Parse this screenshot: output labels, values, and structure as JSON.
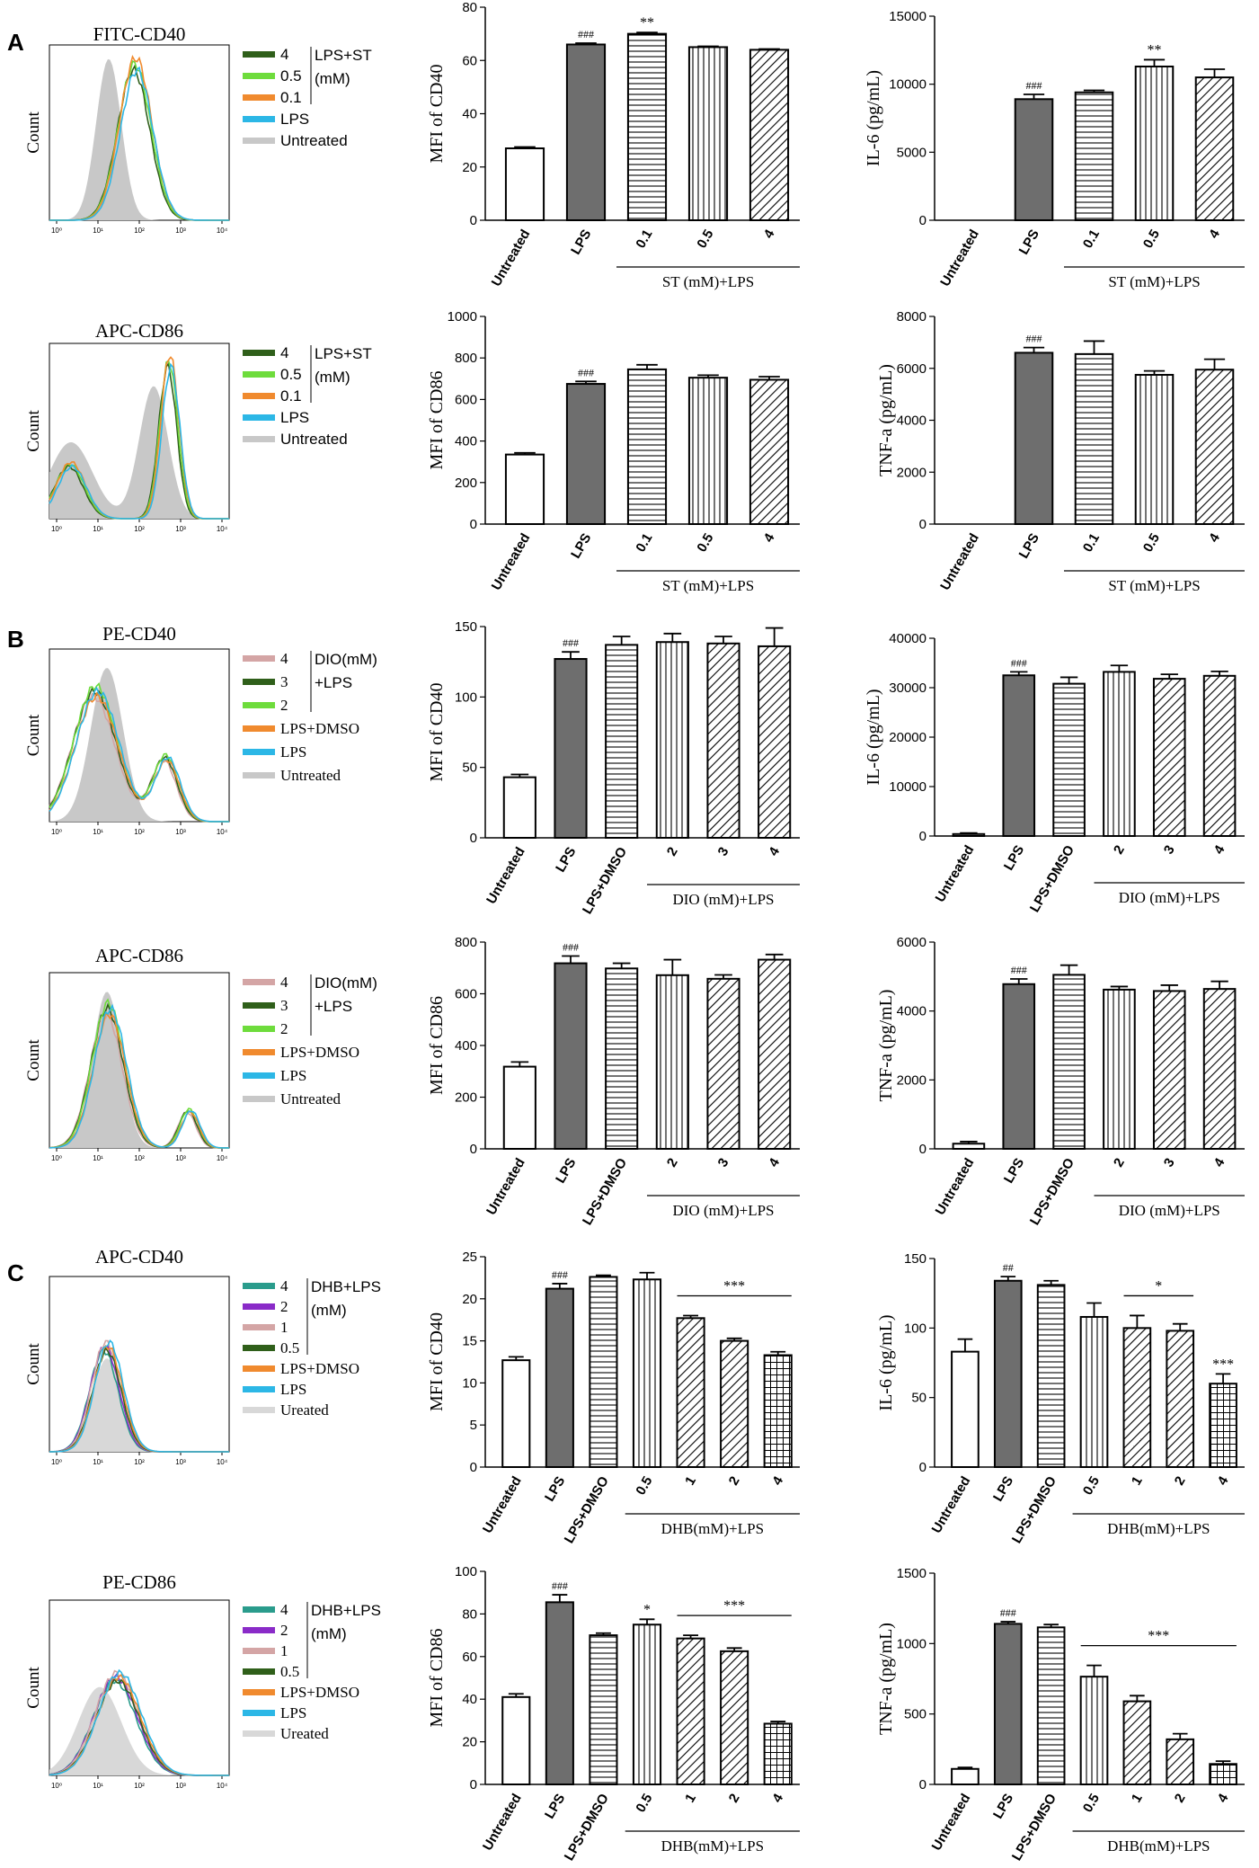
{
  "panels": [
    {
      "letter": "A"
    },
    {
      "letter": "B"
    },
    {
      "letter": "C"
    }
  ],
  "colors": {
    "untreated_fill": "#c8c8c8",
    "lps_bar": "#6e6e6e",
    "dark_green": "#2f5f1a",
    "light_green": "#6edc3c",
    "orange": "#f08a2e",
    "cyan": "#2cb7e6",
    "pink": "#d4a5a5",
    "teal": "#2a9c8c",
    "purple": "#8a2bc8",
    "light_gray": "#d8d8d8"
  },
  "histograms": [
    {
      "title": "FITC-CD40",
      "ylabel": "Count",
      "xticks": [
        "10⁰",
        "10¹",
        "10²",
        "10³",
        "10⁴"
      ],
      "legend": [
        {
          "label": "4",
          "color": "#2f5f1a"
        },
        {
          "label": "0.5",
          "color": "#6edc3c"
        },
        {
          "label": "0.1",
          "color": "#f08a2e"
        },
        {
          "label": "LPS",
          "color": "#2cb7e6"
        },
        {
          "label": "Untreated",
          "color": "#c8c8c8"
        }
      ],
      "group_label": [
        "LPS+ST",
        "(mM)"
      ],
      "group_count": 3
    },
    {
      "title": "APC-CD86",
      "ylabel": "Count",
      "xticks": [
        "10⁰",
        "10¹",
        "10²",
        "10³",
        "10⁴"
      ],
      "legend": [
        {
          "label": "4",
          "color": "#2f5f1a"
        },
        {
          "label": "0.5",
          "color": "#6edc3c"
        },
        {
          "label": "0.1",
          "color": "#f08a2e"
        },
        {
          "label": "LPS",
          "color": "#2cb7e6"
        },
        {
          "label": "Untreated",
          "color": "#c8c8c8"
        }
      ],
      "group_label": [
        "LPS+ST",
        "(mM)"
      ],
      "group_count": 3
    },
    {
      "title": "PE-CD40",
      "ylabel": "Count",
      "xticks": [
        "10⁰",
        "10¹",
        "10²",
        "10³",
        "10⁴"
      ],
      "legend": [
        {
          "label": "4",
          "color": "#d4a5a5"
        },
        {
          "label": "3",
          "color": "#2f5f1a"
        },
        {
          "label": "2",
          "color": "#6edc3c"
        },
        {
          "label": "LPS+DMSO",
          "color": "#f08a2e"
        },
        {
          "label": "LPS",
          "color": "#2cb7e6"
        },
        {
          "label": "Untreated",
          "color": "#c8c8c8"
        }
      ],
      "group_label": [
        "DIO(mM)",
        "+LPS"
      ],
      "group_count": 3
    },
    {
      "title": "APC-CD86",
      "ylabel": "Count",
      "xticks": [
        "10⁰",
        "10¹",
        "10²",
        "10³",
        "10⁴"
      ],
      "legend": [
        {
          "label": "4",
          "color": "#d4a5a5"
        },
        {
          "label": "3",
          "color": "#2f5f1a"
        },
        {
          "label": "2",
          "color": "#6edc3c"
        },
        {
          "label": "LPS+DMSO",
          "color": "#f08a2e"
        },
        {
          "label": "LPS",
          "color": "#2cb7e6"
        },
        {
          "label": "Untreated",
          "color": "#c8c8c8"
        }
      ],
      "group_label": [
        "DIO(mM)",
        "+LPS"
      ],
      "group_count": 3
    },
    {
      "title": "APC-CD40",
      "ylabel": "Count",
      "xticks": [
        "10⁰",
        "10¹",
        "10²",
        "10³",
        "10⁴"
      ],
      "legend": [
        {
          "label": "4",
          "color": "#2a9c8c"
        },
        {
          "label": "2",
          "color": "#8a2bc8"
        },
        {
          "label": "1",
          "color": "#d4a5a5"
        },
        {
          "label": "0.5",
          "color": "#2f5f1a"
        },
        {
          "label": "LPS+DMSO",
          "color": "#f08a2e"
        },
        {
          "label": "LPS",
          "color": "#2cb7e6"
        },
        {
          "label": "Ureated",
          "color": "#d8d8d8"
        }
      ],
      "group_label": [
        "DHB+LPS",
        "(mM)"
      ],
      "group_count": 4
    },
    {
      "title": "PE-CD86",
      "ylabel": "Count",
      "xticks": [
        "10⁰",
        "10¹",
        "10²",
        "10³",
        "10⁴"
      ],
      "legend": [
        {
          "label": "4",
          "color": "#2a9c8c"
        },
        {
          "label": "2",
          "color": "#8a2bc8"
        },
        {
          "label": "1",
          "color": "#d4a5a5"
        },
        {
          "label": "0.5",
          "color": "#2f5f1a"
        },
        {
          "label": "LPS+DMSO",
          "color": "#f08a2e"
        },
        {
          "label": "LPS",
          "color": "#2cb7e6"
        },
        {
          "label": "Ureated",
          "color": "#d8d8d8"
        }
      ],
      "group_label": [
        "DHB+LPS",
        "(mM)"
      ],
      "group_count": 4
    }
  ],
  "chart_data": [
    {
      "type": "bar",
      "ylabel": "MFI of CD40",
      "ylim": [
        0,
        80
      ],
      "yticks": [
        0,
        20,
        40,
        60,
        80
      ],
      "categories": [
        "Untreated",
        "LPS",
        "0.1",
        "0.5",
        "4"
      ],
      "values": [
        27,
        66,
        70,
        65,
        64
      ],
      "errors": [
        0.5,
        0.5,
        0.5,
        0.3,
        0.3
      ],
      "patterns": [
        "none",
        "solid",
        "hlines",
        "vlines",
        "diag"
      ],
      "annotations": [
        "",
        "###",
        "**",
        "",
        ""
      ],
      "group_label": "ST (mM)+LPS",
      "group_range": [
        2,
        4
      ]
    },
    {
      "type": "bar",
      "ylabel": "IL-6 (pg/mL)",
      "ylim": [
        0,
        15000
      ],
      "yticks": [
        0,
        5000,
        10000,
        15000
      ],
      "categories": [
        "Untreated",
        "LPS",
        "0.1",
        "0.5",
        "4"
      ],
      "values": [
        0,
        8900,
        9400,
        11300,
        10500
      ],
      "errors": [
        0,
        350,
        150,
        500,
        600
      ],
      "patterns": [
        "none",
        "solid",
        "hlines",
        "vlines",
        "diag"
      ],
      "annotations": [
        "",
        "###",
        "",
        "**",
        ""
      ],
      "group_label": "ST (mM)+LPS",
      "group_range": [
        2,
        4
      ]
    },
    {
      "type": "bar",
      "ylabel": "MFI of CD86",
      "ylim": [
        0,
        1000
      ],
      "yticks": [
        0,
        200,
        400,
        600,
        800,
        1000
      ],
      "categories": [
        "Untreated",
        "LPS",
        "0.1",
        "0.5",
        "4"
      ],
      "values": [
        335,
        675,
        745,
        705,
        695
      ],
      "errors": [
        8,
        12,
        22,
        12,
        15
      ],
      "patterns": [
        "none",
        "solid",
        "hlines",
        "vlines",
        "diag"
      ],
      "annotations": [
        "",
        "###",
        "",
        "",
        ""
      ],
      "group_label": "ST (mM)+LPS",
      "group_range": [
        2,
        4
      ]
    },
    {
      "type": "bar",
      "ylabel": "TNF-a (pg/mL)",
      "ylim": [
        0,
        8000
      ],
      "yticks": [
        0,
        2000,
        4000,
        6000,
        8000
      ],
      "categories": [
        "Untreated",
        "LPS",
        "0.1",
        "0.5",
        "4"
      ],
      "values": [
        0,
        6600,
        6550,
        5750,
        5950
      ],
      "errors": [
        0,
        200,
        500,
        150,
        400
      ],
      "patterns": [
        "none",
        "solid",
        "hlines",
        "vlines",
        "diag"
      ],
      "annotations": [
        "",
        "###",
        "",
        "",
        ""
      ],
      "group_label": "ST (mM)+LPS",
      "group_range": [
        2,
        4
      ]
    },
    {
      "type": "bar",
      "ylabel": "MFI of CD40",
      "ylim": [
        0,
        150
      ],
      "yticks": [
        0,
        50,
        100,
        150
      ],
      "categories": [
        "Untreated",
        "LPS",
        "LPS+DMSO",
        "2",
        "3",
        "4"
      ],
      "values": [
        43,
        127,
        137,
        139,
        138,
        136
      ],
      "errors": [
        2,
        5,
        6,
        6,
        5,
        13
      ],
      "patterns": [
        "none",
        "solid",
        "hlines",
        "vlines",
        "diag",
        "diag"
      ],
      "annotations": [
        "",
        "###",
        "",
        "",
        "",
        ""
      ],
      "group_label": "DIO (mM)+LPS",
      "group_range": [
        3,
        5
      ]
    },
    {
      "type": "bar",
      "ylabel": "IL-6 (pg/mL)",
      "ylim": [
        0,
        40000
      ],
      "yticks": [
        0,
        10000,
        20000,
        30000,
        40000
      ],
      "categories": [
        "Untreated",
        "LPS",
        "LPS+DMSO",
        "2",
        "3",
        "4"
      ],
      "values": [
        400,
        32500,
        30800,
        33200,
        31800,
        32400
      ],
      "errors": [
        200,
        700,
        1300,
        1300,
        900,
        900
      ],
      "patterns": [
        "none",
        "solid",
        "hlines",
        "vlines",
        "diag",
        "diag"
      ],
      "annotations": [
        "",
        "###",
        "",
        "",
        "",
        ""
      ],
      "group_label": "DIO (mM)+LPS",
      "group_range": [
        3,
        5
      ]
    },
    {
      "type": "bar",
      "ylabel": "MFI of CD86",
      "ylim": [
        0,
        800
      ],
      "yticks": [
        0,
        200,
        400,
        600,
        800
      ],
      "categories": [
        "Untreated",
        "LPS",
        "LPS+DMSO",
        "2",
        "3",
        "4"
      ],
      "values": [
        318,
        718,
        698,
        672,
        658,
        732
      ],
      "errors": [
        18,
        28,
        20,
        60,
        15,
        20
      ],
      "patterns": [
        "none",
        "solid",
        "hlines",
        "vlines",
        "diag",
        "diag"
      ],
      "annotations": [
        "",
        "###",
        "",
        "",
        "",
        ""
      ],
      "group_label": "DIO (mM)+LPS",
      "group_range": [
        3,
        5
      ]
    },
    {
      "type": "bar",
      "ylabel": "TNF-a (pg/mL)",
      "ylim": [
        0,
        6000
      ],
      "yticks": [
        0,
        2000,
        4000,
        6000
      ],
      "categories": [
        "Untreated",
        "LPS",
        "LPS+DMSO",
        "2",
        "3",
        "4"
      ],
      "values": [
        150,
        4780,
        5050,
        4620,
        4580,
        4640
      ],
      "errors": [
        60,
        150,
        280,
        90,
        170,
        220
      ],
      "patterns": [
        "none",
        "solid",
        "hlines",
        "vlines",
        "diag",
        "diag"
      ],
      "annotations": [
        "",
        "###",
        "",
        "",
        "",
        ""
      ],
      "group_label": "DIO (mM)+LPS",
      "group_range": [
        3,
        5
      ]
    },
    {
      "type": "bar",
      "ylabel": "MFI of CD40",
      "ylim": [
        0,
        25
      ],
      "yticks": [
        0,
        5,
        10,
        15,
        20,
        25
      ],
      "categories": [
        "Untreated",
        "LPS",
        "LPS+DMSO",
        "0.5",
        "1",
        "2",
        "4"
      ],
      "values": [
        12.7,
        21.2,
        22.6,
        22.3,
        17.7,
        15,
        13.3
      ],
      "errors": [
        0.4,
        0.6,
        0.2,
        0.8,
        0.3,
        0.3,
        0.4
      ],
      "patterns": [
        "none",
        "solid",
        "hlines",
        "vlines",
        "diag",
        "diag",
        "grid"
      ],
      "annotations": [
        "",
        "###",
        "",
        "",
        "",
        "",
        ""
      ],
      "brackets": [
        {
          "from": 4,
          "to": 6,
          "label": "***"
        }
      ],
      "group_label": "DHB(mM)+LPS",
      "group_range": [
        3,
        6
      ]
    },
    {
      "type": "bar",
      "ylabel": "IL-6 (pg/mL)",
      "ylim": [
        0,
        150
      ],
      "yticks": [
        0,
        50,
        100,
        150
      ],
      "categories": [
        "Untreated",
        "LPS",
        "LPS+DMSO",
        "0.5",
        "1",
        "2",
        "4"
      ],
      "values": [
        83,
        134,
        131,
        108,
        100,
        98,
        60
      ],
      "errors": [
        9,
        3,
        3,
        10,
        9,
        5,
        7
      ],
      "patterns": [
        "none",
        "solid",
        "hlines",
        "vlines",
        "diag",
        "diag",
        "grid"
      ],
      "annotations": [
        "",
        "##",
        "",
        "",
        "",
        "",
        "***"
      ],
      "brackets": [
        {
          "from": 4,
          "to": 5,
          "label": "*"
        }
      ],
      "group_label": "DHB(mM)+LPS",
      "group_range": [
        3,
        6
      ]
    },
    {
      "type": "bar",
      "ylabel": "MFI of CD86",
      "ylim": [
        0,
        100
      ],
      "yticks": [
        0,
        20,
        40,
        60,
        80,
        100
      ],
      "categories": [
        "Untreated",
        "LPS",
        "LPS+DMSO",
        "0.5",
        "1",
        "2",
        "4"
      ],
      "values": [
        41,
        85.5,
        70,
        75,
        68.5,
        62.5,
        28.5
      ],
      "errors": [
        1.5,
        3.5,
        1,
        2.5,
        1.5,
        1.5,
        1
      ],
      "patterns": [
        "none",
        "solid",
        "hlines",
        "vlines",
        "diag",
        "diag",
        "grid"
      ],
      "annotations": [
        "",
        "###",
        "",
        "*",
        "",
        "",
        ""
      ],
      "brackets": [
        {
          "from": 4,
          "to": 6,
          "label": "***"
        }
      ],
      "group_label": "DHB(mM)+LPS",
      "group_range": [
        3,
        6
      ]
    },
    {
      "type": "bar",
      "ylabel": "TNF-a (pg/mL)",
      "ylim": [
        0,
        1500
      ],
      "yticks": [
        0,
        500,
        1000,
        1500
      ],
      "categories": [
        "Untreated",
        "LPS",
        "LPS+DMSO",
        "0.5",
        "1",
        "2",
        "4"
      ],
      "values": [
        110,
        1140,
        1115,
        765,
        590,
        320,
        145
      ],
      "errors": [
        10,
        15,
        20,
        80,
        40,
        40,
        20
      ],
      "patterns": [
        "none",
        "solid",
        "hlines",
        "vlines",
        "diag",
        "diag",
        "grid"
      ],
      "annotations": [
        "",
        "###",
        "",
        "",
        "",
        "",
        ""
      ],
      "brackets": [
        {
          "from": 3,
          "to": 6,
          "label": "***"
        }
      ],
      "group_label": "DHB(mM)+LPS",
      "group_range": [
        3,
        6
      ]
    }
  ]
}
